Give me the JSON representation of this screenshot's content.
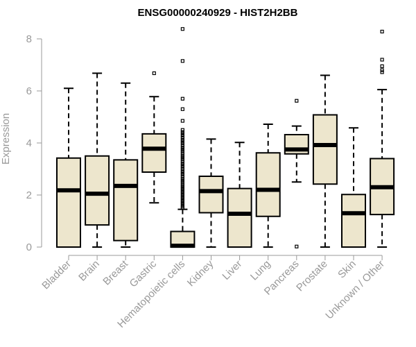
{
  "chart_data": {
    "type": "boxplot",
    "title": "ENSG00000240929 - HIST2H2BB",
    "xlabel": "",
    "ylabel": "Expression",
    "ylim": [
      0,
      8.4
    ],
    "yticks": [
      0,
      2,
      4,
      6,
      8
    ],
    "box_fill": "#ede6cd",
    "axis_color": "#999999",
    "categories": [
      "Bladder",
      "Brain",
      "Breast",
      "Gastric",
      "Hematopoietic cells",
      "Kidney",
      "Liver",
      "Lung",
      "Pancreas",
      "Prostate",
      "Skin",
      "Unknown / Other"
    ],
    "boxes": [
      {
        "name": "Bladder",
        "whisker_low": 0,
        "q1": 0,
        "median": 2.18,
        "q3": 3.42,
        "whisker_high": 6.1,
        "outliers": []
      },
      {
        "name": "Brain",
        "whisker_low": 0,
        "q1": 0.85,
        "median": 2.05,
        "q3": 3.5,
        "whisker_high": 6.68,
        "outliers": []
      },
      {
        "name": "Breast",
        "whisker_low": 0,
        "q1": 0.25,
        "median": 2.35,
        "q3": 3.35,
        "whisker_high": 6.3,
        "outliers": []
      },
      {
        "name": "Gastric",
        "whisker_low": 1.7,
        "q1": 2.88,
        "median": 3.78,
        "q3": 4.35,
        "whisker_high": 5.78,
        "outliers": [
          6.68
        ]
      },
      {
        "name": "Hematopoietic cells",
        "whisker_low": 0,
        "q1": 0,
        "median": 0.05,
        "q3": 0.6,
        "whisker_high": 1.45,
        "outliers": [
          8.38,
          7.15,
          5.7,
          5.3,
          4.85,
          4.5,
          4.42,
          4.35,
          4.28,
          4.2,
          4.12,
          4.05,
          3.98,
          3.9,
          3.82,
          3.75,
          3.68,
          3.6,
          3.52,
          3.45,
          3.38,
          3.3,
          3.22,
          3.15,
          3.08,
          3.0,
          2.92,
          2.85,
          2.78,
          2.7,
          2.62,
          2.55,
          2.48,
          2.4,
          2.33,
          2.26,
          2.19,
          2.12,
          2.05,
          1.98,
          1.91,
          1.84,
          1.77,
          1.7,
          1.63,
          1.56,
          1.5
        ]
      },
      {
        "name": "Kidney",
        "whisker_low": 0,
        "q1": 1.32,
        "median": 2.15,
        "q3": 2.72,
        "whisker_high": 4.15,
        "outliers": []
      },
      {
        "name": "Liver",
        "whisker_low": 0,
        "q1": 0,
        "median": 1.28,
        "q3": 2.25,
        "whisker_high": 4.02,
        "outliers": []
      },
      {
        "name": "Lung",
        "whisker_low": 0,
        "q1": 1.18,
        "median": 2.2,
        "q3": 3.62,
        "whisker_high": 4.72,
        "outliers": []
      },
      {
        "name": "Pancreas",
        "whisker_low": 2.5,
        "q1": 3.58,
        "median": 3.75,
        "q3": 4.32,
        "whisker_high": 4.65,
        "outliers": [
          5.62,
          0.02
        ]
      },
      {
        "name": "Prostate",
        "whisker_low": 0,
        "q1": 2.42,
        "median": 3.92,
        "q3": 5.08,
        "whisker_high": 6.6,
        "outliers": []
      },
      {
        "name": "Skin",
        "whisker_low": 0,
        "q1": 0,
        "median": 1.3,
        "q3": 2.02,
        "whisker_high": 4.58,
        "outliers": []
      },
      {
        "name": "Unknown / Other",
        "whisker_low": 0,
        "q1": 1.25,
        "median": 2.3,
        "q3": 3.4,
        "whisker_high": 6.05,
        "outliers": [
          8.28,
          7.2,
          6.95,
          6.8,
          6.72
        ]
      }
    ]
  }
}
